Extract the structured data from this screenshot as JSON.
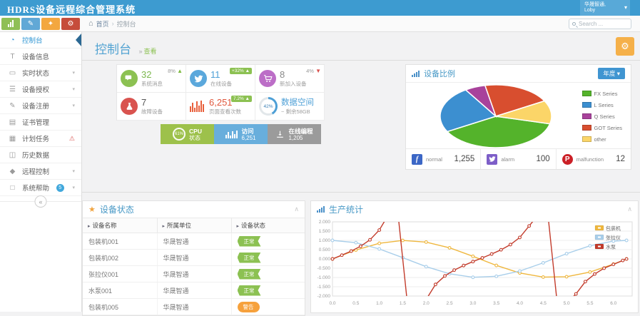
{
  "app": {
    "title": "HDRS设备远程综合管理系统",
    "user_org": "华晟智通,",
    "user_name": "Loby"
  },
  "icons": {
    "home": "⌂",
    "gear": "⚙",
    "warning": "⚠",
    "star": "★",
    "collapse": "«",
    "caret_down": "▾",
    "caret_up": "∧",
    "crumb_sep": "›",
    "sort": "▸",
    "up": "▲",
    "down": "▼",
    "subtitle_sep": "»",
    "pencil": "✎",
    "shirt": "✦",
    "gears": "⚙"
  },
  "toolbar": {
    "breadcrumb": {
      "home": "首页",
      "current": "控制台"
    },
    "search_placeholder": "Search ...",
    "quick_buttons": [
      {
        "name": "chart",
        "color": "#8FBF56"
      },
      {
        "name": "pencil",
        "color": "#61A8D6"
      },
      {
        "name": "shirt",
        "color": "#F3A73F"
      },
      {
        "name": "gears",
        "color": "#C64C3B"
      }
    ]
  },
  "sidebar": {
    "items": [
      {
        "label": "控制台",
        "icon": "gauge",
        "active": true
      },
      {
        "label": "设备信息",
        "icon": "text"
      },
      {
        "label": "实时状态",
        "icon": "monitor",
        "chevron": true
      },
      {
        "label": "设备授权",
        "icon": "list",
        "chevron": true
      },
      {
        "label": "设备注册",
        "icon": "edit",
        "chevron": true
      },
      {
        "label": "证书管理",
        "icon": "certificate"
      },
      {
        "label": "计划任务",
        "icon": "calendar",
        "alert": true
      },
      {
        "label": "历史数据",
        "icon": "image"
      },
      {
        "label": "远程控制",
        "icon": "tag",
        "chevron": true
      },
      {
        "label": "系统帮助",
        "icon": "file",
        "badge": "5",
        "chevron": true
      }
    ]
  },
  "page": {
    "title": "控制台",
    "subtitle": "查看"
  },
  "stats": {
    "cards": [
      {
        "type": "icon",
        "icon": "chat",
        "icon_bg": "#8CC152",
        "value": "32",
        "value_color": "#7CB84E",
        "label": "系统消息",
        "delta": {
          "text": "8%",
          "dir": "up",
          "style": "plain"
        }
      },
      {
        "type": "icon",
        "icon": "twitter",
        "icon_bg": "#5BA8DC",
        "value": "11",
        "value_color": "#4D9FD6",
        "label": "在线设备",
        "delta": {
          "text": "+32%",
          "dir": "up",
          "style": "badge"
        }
      },
      {
        "type": "icon",
        "icon": "cart",
        "icon_bg": "#BC6EC7",
        "value": "8",
        "value_color": "#8A8A8A",
        "label": "新加入设备",
        "delta": {
          "text": "4%",
          "dir": "down",
          "style": "plain"
        }
      },
      {
        "type": "icon",
        "icon": "flask",
        "icon_bg": "#D9534F",
        "value": "7",
        "value_color": "#555555",
        "label": "故障设备"
      },
      {
        "type": "bars",
        "value": "6,251",
        "value_color": "#E0573C",
        "label": "页面查看次数",
        "delta": {
          "text": "7.2%",
          "dir": "up",
          "style": "badge"
        }
      },
      {
        "type": "donut",
        "percent": "42%",
        "title": "数据空间",
        "sub": "~ 剩余58GB"
      }
    ]
  },
  "meter_bar": {
    "segments": [
      {
        "kind": "cpu",
        "percent": "61%",
        "line1": "CPU",
        "line2": "状态",
        "color": "#9DC14B"
      },
      {
        "kind": "visits",
        "line1": "访问",
        "line2": "6,251",
        "color": "#68AEDC"
      },
      {
        "kind": "programming",
        "line1": "在线编程",
        "line2": "1,205",
        "color": "#9B9B9B"
      }
    ]
  },
  "device_ratio": {
    "title": "设备比例",
    "period_button": "年度",
    "chart_data": {
      "type": "pie",
      "start_angle_deg": 104,
      "slices": [
        {
          "label": "FX Series",
          "value": 38,
          "color": "#54B32B"
        },
        {
          "label": "L Series",
          "value": 24,
          "color": "#3C8FD0"
        },
        {
          "label": "Q Series",
          "value": 6,
          "color": "#A8429B"
        },
        {
          "label": "GOT Series",
          "value": 20,
          "color": "#D84E2F"
        },
        {
          "label": "other",
          "value": 12,
          "color": "#FBD568"
        }
      ]
    },
    "footer": [
      {
        "network": "facebook",
        "label": "normal",
        "value": "1,255",
        "color": "#3C67C6",
        "shape": "square",
        "letter": "f"
      },
      {
        "network": "twitter",
        "label": "alarm",
        "value": "100",
        "color": "#7D5EC8",
        "shape": "square",
        "letter": ""
      },
      {
        "network": "pinterest",
        "label": "malfunction",
        "value": "12",
        "color": "#CB2027",
        "shape": "circle",
        "letter": "P"
      }
    ]
  },
  "device_status": {
    "title": "设备状态",
    "columns": [
      "设备名称",
      "所属单位",
      "设备状态"
    ],
    "rows": [
      {
        "name": "包装机001",
        "unit": "华晟智通",
        "status": "正常",
        "status_type": "ok"
      },
      {
        "name": "包装机002",
        "unit": "华晟智通",
        "status": "正常",
        "status_type": "ok"
      },
      {
        "name": "张拉仪001",
        "unit": "华晟智通",
        "status": "正常",
        "status_type": "ok"
      },
      {
        "name": "水泵001",
        "unit": "华晟智通",
        "status": "正常",
        "status_type": "ok"
      },
      {
        "name": "包装机005",
        "unit": "华晟智通",
        "status": "警告",
        "status_type": "warn"
      }
    ]
  },
  "production": {
    "title": "生产统计",
    "chart_data": {
      "type": "line",
      "xlim": [
        0,
        6.4
      ],
      "ylim": [
        -2,
        2
      ],
      "x_ticks": [
        "0.0",
        "0.5",
        "1.0",
        "1.5",
        "2.0",
        "2.5",
        "3.0",
        "3.5",
        "4.0",
        "4.5",
        "5.0",
        "5.5",
        "6.0"
      ],
      "y_ticks": [
        "2.000",
        "1.500",
        "1.000",
        "0.500",
        "0.000",
        "-0.500",
        "-1.000",
        "-1.500",
        "-2.000"
      ],
      "grid": true,
      "legend_position": "top-right",
      "series": [
        {
          "name": "包装机",
          "color": "#EFB73E",
          "x": [
            0,
            0.5,
            1,
            1.5,
            2,
            2.5,
            3,
            3.5,
            4,
            4.5,
            5,
            5.5,
            6,
            6.28
          ],
          "y": [
            0,
            0.479,
            0.841,
            0.997,
            0.909,
            0.599,
            0.141,
            -0.351,
            -0.757,
            -0.978,
            -0.959,
            -0.706,
            -0.279,
            -0.003
          ]
        },
        {
          "name": "张拉仪",
          "color": "#A8CEEA",
          "x": [
            0,
            0.5,
            1,
            1.5,
            2,
            2.5,
            3,
            3.5,
            4,
            4.5,
            5,
            5.5,
            6,
            6.28
          ],
          "y": [
            1,
            0.878,
            0.54,
            0.071,
            -0.416,
            -0.801,
            -0.99,
            -0.936,
            -0.654,
            -0.211,
            0.284,
            0.709,
            0.96,
            1.0
          ]
        },
        {
          "name": "水泵",
          "color": "#C23B2B",
          "x": [
            0,
            0.2,
            0.4,
            0.6,
            0.8,
            1,
            1.2,
            1.4,
            1.6,
            1.8,
            2,
            2.2,
            2.4,
            2.6,
            2.8,
            3,
            3.2,
            3.4,
            3.6,
            3.8,
            4,
            4.2,
            4.4,
            4.6,
            4.8,
            5,
            5.2,
            5.4,
            5.6,
            5.8,
            6,
            6.2,
            6.28
          ],
          "y": [
            0,
            0.203,
            0.423,
            0.684,
            1.03,
            1.557,
            2.572,
            5.798,
            -34.233,
            -4.286,
            -2.185,
            -1.374,
            -0.916,
            -0.602,
            -0.356,
            -0.143,
            0.058,
            0.264,
            0.493,
            0.774,
            1.158,
            1.778,
            3.096,
            8.86,
            -11.385,
            -3.381,
            -1.886,
            -1.222,
            -0.814,
            -0.5,
            -0.291,
            -0.083,
            -0.003
          ]
        }
      ]
    }
  }
}
